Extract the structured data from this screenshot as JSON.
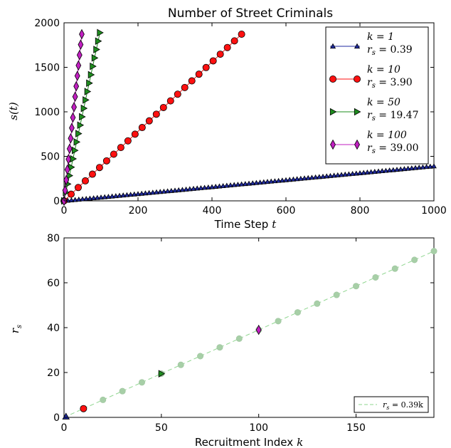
{
  "chart_data": [
    {
      "type": "line",
      "title": "Number of Street Criminals",
      "xlabel": "Time Step",
      "xlabel_var": "t",
      "ylabel": "s(t)",
      "xlim": [
        0,
        1000
      ],
      "ylim": [
        0,
        2000
      ],
      "xticks": [
        "0",
        "200",
        "400",
        "600",
        "800",
        "1000"
      ],
      "yticks": [
        "0",
        "500",
        "1000",
        "1500",
        "2000"
      ],
      "legend_position": "upper-right",
      "series": [
        {
          "name": "k=1",
          "rate_label": "r_s=0.39",
          "k_text": "k = 1",
          "r_text": "r",
          "r_sub": "s",
          "r_val": " = 0.39",
          "rate": 0.39,
          "t_max": 1000,
          "n_markers": 100,
          "color": "#1f2aa0",
          "marker": "triangle-up"
        },
        {
          "name": "k=10",
          "rate_label": "r_s=3.90",
          "k_text": "k = 10",
          "r_text": "r",
          "r_sub": "s",
          "r_val": " = 3.90",
          "rate": 3.9,
          "t_max": 480,
          "n_markers": 25,
          "color": "#ff1010",
          "marker": "circle"
        },
        {
          "name": "k=50",
          "rate_label": "r_s=19.47",
          "k_text": "k = 50",
          "r_text": "r",
          "r_sub": "s",
          "r_val": " = 19.47",
          "rate": 19.47,
          "t_max": 97,
          "n_markers": 20,
          "color": "#1e8c1e",
          "marker": "triangle-right"
        },
        {
          "name": "k=100",
          "rate_label": "r_s=39.00",
          "k_text": "k = 100",
          "r_text": "r",
          "r_sub": "s",
          "r_val": " = 39.00",
          "rate": 39.0,
          "t_max": 48,
          "n_markers": 16,
          "color": "#c21fc2",
          "marker": "diamond"
        }
      ]
    },
    {
      "type": "scatter",
      "xlabel": "Recruitment Index",
      "xlabel_var": "k",
      "ylabel": "r_s",
      "ylabel_text": "r",
      "ylabel_sub": "s",
      "xlim": [
        0,
        190
      ],
      "ylim": [
        0,
        80
      ],
      "xticks": [
        "0",
        "50",
        "100",
        "150"
      ],
      "yticks": [
        "0",
        "20",
        "40",
        "60",
        "80"
      ],
      "fit": {
        "label": "r_s=0.39k",
        "r_text": "r",
        "r_sub": "s",
        "r_val": " = 0.39k",
        "slope": 0.39,
        "color": "#8fd68f"
      },
      "points": {
        "x": [
          10,
          20,
          30,
          40,
          50,
          60,
          70,
          80,
          90,
          100,
          110,
          120,
          130,
          140,
          150,
          160,
          170,
          180,
          190
        ],
        "y": [
          3.9,
          7.8,
          11.7,
          15.6,
          19.5,
          23.4,
          27.3,
          31.2,
          35.1,
          39.0,
          42.9,
          46.8,
          50.7,
          54.6,
          58.5,
          62.4,
          66.3,
          70.2,
          74.1
        ],
        "color": "#a7cfa7"
      },
      "highlight": [
        {
          "k": 1,
          "r": 0.39,
          "color": "#1f2aa0",
          "marker": "triangle-up"
        },
        {
          "k": 10,
          "r": 3.9,
          "color": "#ff1010",
          "marker": "circle"
        },
        {
          "k": 50,
          "r": 19.47,
          "color": "#1e8c1e",
          "marker": "triangle-right"
        },
        {
          "k": 100,
          "r": 39.0,
          "color": "#c21fc2",
          "marker": "diamond"
        }
      ],
      "legend_position": "lower-right"
    }
  ]
}
